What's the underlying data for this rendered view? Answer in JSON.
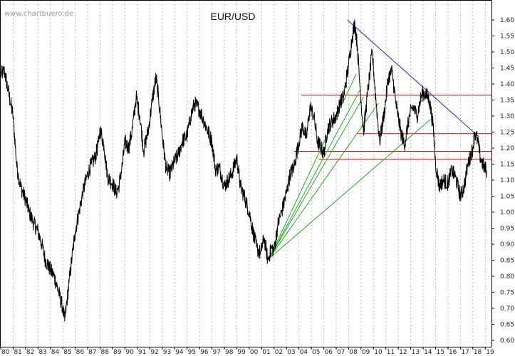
{
  "chart_data": {
    "type": "line",
    "title": "EUR/USD",
    "watermark": "www.chartbuero.de",
    "xlabel": "",
    "ylabel": "",
    "x_tick_labels": [
      "80",
      "81",
      "82",
      "83",
      "84",
      "85",
      "86",
      "87",
      "88",
      "89",
      "90",
      "91",
      "92",
      "93",
      "94",
      "95",
      "96",
      "97",
      "98",
      "99",
      "00",
      "01",
      "02",
      "03",
      "04",
      "05",
      "06",
      "07",
      "08",
      "09",
      "10",
      "11",
      "12",
      "13",
      "14",
      "15",
      "16",
      "17",
      "18",
      "19"
    ],
    "xlim": [
      1980.0,
      2019.5
    ],
    "ylim": [
      0.58,
      1.66
    ],
    "y_ticks": [
      0.6,
      0.65,
      0.7,
      0.75,
      0.8,
      0.85,
      0.9,
      0.95,
      1.0,
      1.05,
      1.1,
      1.15,
      1.2,
      1.25,
      1.3,
      1.35,
      1.4,
      1.45,
      1.5,
      1.55,
      1.6
    ],
    "y_tick_labels": [
      "0.60",
      "0.65",
      "0.70",
      "0.75",
      "0.80",
      "0.85",
      "0.90",
      "0.95",
      "1.00",
      "1.05",
      "1.10",
      "1.15",
      "1.20",
      "1.25",
      "1.30",
      "1.35",
      "1.40",
      "1.45",
      "1.50",
      "1.55",
      "1.60"
    ],
    "y_axis_position": "right",
    "grid": "vertical dotted",
    "colors": {
      "price": "#000000",
      "horizontal_lines": "#dd0000",
      "fan_lines": "#22aa22",
      "trend_line": "#2222cc",
      "grid": "#b8b8b8"
    },
    "series": [
      {
        "x": [
          1980.0,
          1980.3,
          1980.6,
          1981.0,
          1981.3,
          1981.6,
          1982.0,
          1982.3,
          1982.6,
          1983.0,
          1983.3,
          1983.6,
          1984.0,
          1984.3,
          1984.6,
          1985.0,
          1985.15,
          1985.5,
          1985.8,
          1986.0,
          1986.3,
          1986.6,
          1987.0,
          1987.3,
          1987.6,
          1987.9,
          1988.0,
          1988.3,
          1988.6,
          1989.0,
          1989.3,
          1989.5,
          1989.8,
          1990.0,
          1990.3,
          1990.6,
          1990.9,
          1991.2,
          1991.5,
          1991.9,
          1992.2,
          1992.5,
          1992.7,
          1993.0,
          1993.3,
          1993.6,
          1994.0,
          1994.3,
          1994.6,
          1995.0,
          1995.3,
          1995.6,
          1996.0,
          1996.3,
          1996.6,
          1997.0,
          1997.3,
          1997.6,
          1998.0,
          1998.3,
          1998.6,
          1999.0,
          1999.3,
          1999.6,
          2000.0,
          2000.3,
          2000.6,
          2000.9,
          2001.2,
          2001.5,
          2001.8,
          2002.0,
          2002.3,
          2002.6,
          2003.0,
          2003.3,
          2003.6,
          2004.0,
          2004.3,
          2004.6,
          2004.9,
          2005.2,
          2005.5,
          2005.8,
          2006.0,
          2006.3,
          2006.6,
          2007.0,
          2007.3,
          2007.6,
          2008.0,
          2008.3,
          2008.5,
          2008.7,
          2008.9,
          2009.2,
          2009.5,
          2009.9,
          2010.2,
          2010.5,
          2010.9,
          2011.2,
          2011.5,
          2011.8,
          2012.2,
          2012.5,
          2012.9,
          2013.2,
          2013.5,
          2013.9,
          2014.2,
          2014.5,
          2014.8,
          2015.0,
          2015.3,
          2015.6,
          2016.0,
          2016.3,
          2016.6,
          2017.0,
          2017.3,
          2017.6,
          2018.0,
          2018.15,
          2018.4,
          2018.6,
          2018.9,
          2019.1
        ],
        "y": [
          1.43,
          1.44,
          1.38,
          1.3,
          1.14,
          1.08,
          1.04,
          1.0,
          0.97,
          0.94,
          0.9,
          0.85,
          0.82,
          0.8,
          0.76,
          0.7,
          0.66,
          0.78,
          0.88,
          0.94,
          1.0,
          1.06,
          1.12,
          1.15,
          1.17,
          1.22,
          1.26,
          1.21,
          1.11,
          1.09,
          1.06,
          1.08,
          1.15,
          1.22,
          1.2,
          1.26,
          1.36,
          1.3,
          1.19,
          1.26,
          1.35,
          1.42,
          1.36,
          1.24,
          1.14,
          1.12,
          1.16,
          1.18,
          1.22,
          1.24,
          1.3,
          1.34,
          1.32,
          1.29,
          1.26,
          1.22,
          1.13,
          1.14,
          1.08,
          1.1,
          1.12,
          1.17,
          1.08,
          1.05,
          1.0,
          0.94,
          0.89,
          0.87,
          0.92,
          0.85,
          0.89,
          0.88,
          0.96,
          1.0,
          1.06,
          1.12,
          1.14,
          1.22,
          1.27,
          1.23,
          1.33,
          1.3,
          1.22,
          1.2,
          1.18,
          1.26,
          1.28,
          1.3,
          1.34,
          1.36,
          1.46,
          1.55,
          1.59,
          1.52,
          1.4,
          1.25,
          1.36,
          1.5,
          1.35,
          1.22,
          1.32,
          1.42,
          1.44,
          1.34,
          1.25,
          1.21,
          1.3,
          1.33,
          1.3,
          1.37,
          1.37,
          1.35,
          1.27,
          1.15,
          1.08,
          1.1,
          1.09,
          1.13,
          1.11,
          1.05,
          1.08,
          1.15,
          1.2,
          1.25,
          1.22,
          1.17,
          1.14,
          1.13
        ]
      }
    ],
    "horizontal_lines": [
      {
        "y": 1.365,
        "x_start": 2004.2,
        "x_end": 2019.5
      },
      {
        "y": 1.245,
        "x_start": 2008.7,
        "x_end": 2019.5
      },
      {
        "y": 1.19,
        "x_start": 2003.6,
        "x_end": 2019.5
      },
      {
        "y": 1.165,
        "x_start": 2005.6,
        "x_end": 2019.5
      }
    ],
    "fan_lines": {
      "origin": {
        "x": 2001.6,
        "y": 0.855
      },
      "targets": [
        {
          "x": 2008.6,
          "y": 1.43
        },
        {
          "x": 2008.9,
          "y": 1.38
        },
        {
          "x": 2009.2,
          "y": 1.36
        },
        {
          "x": 2010.4,
          "y": 1.34
        },
        {
          "x": 2014.6,
          "y": 1.29
        }
      ]
    },
    "trend_line": {
      "x1": 2007.9,
      "y1": 1.6,
      "x2": 2018.5,
      "y2": 1.235
    }
  }
}
